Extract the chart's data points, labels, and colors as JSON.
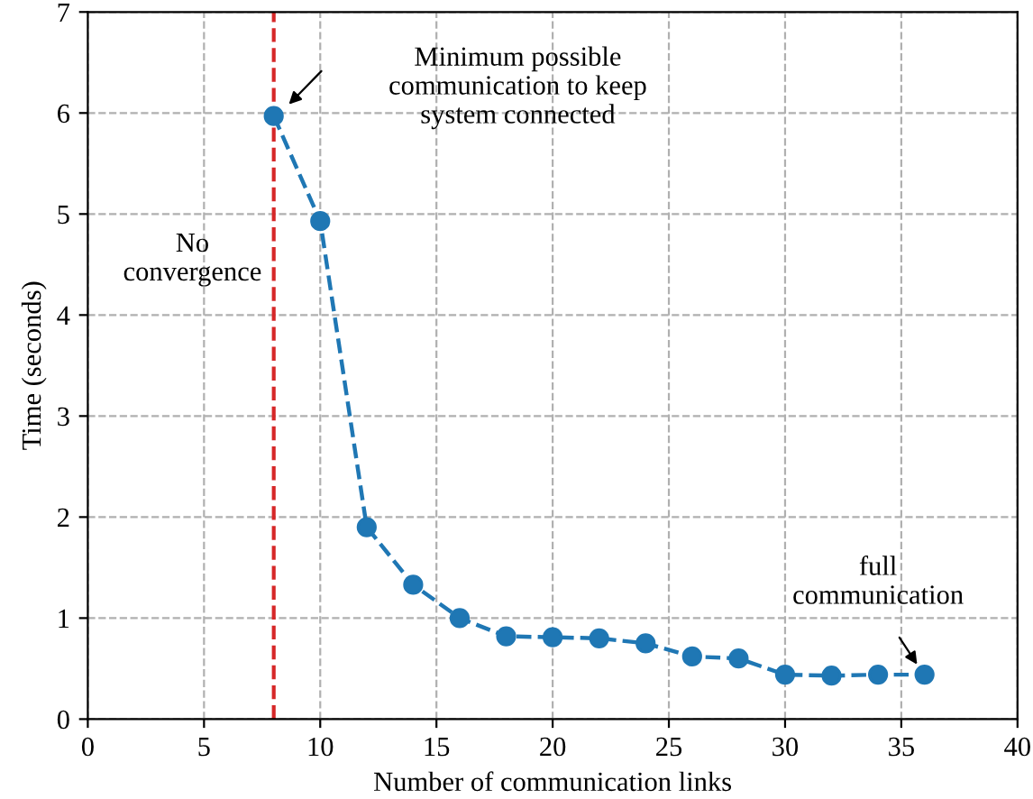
{
  "chart_data": {
    "type": "line",
    "xlabel": "Number of communication links",
    "ylabel": "Time (seconds)",
    "x": [
      8,
      10,
      12,
      14,
      16,
      18,
      20,
      22,
      24,
      26,
      28,
      30,
      32,
      34,
      36
    ],
    "series": [
      {
        "color": "#1f77b4",
        "values": [
          5.97,
          4.93,
          1.9,
          1.33,
          1.0,
          0.82,
          0.81,
          0.8,
          0.75,
          0.62,
          0.6,
          0.44,
          0.43,
          0.44,
          0.44
        ]
      }
    ],
    "marker": "circle",
    "line_style": "dashed",
    "xlim": [
      0,
      40
    ],
    "xticks": [
      0,
      5,
      10,
      15,
      20,
      25,
      30,
      35,
      40
    ],
    "ylim": [
      0,
      7
    ],
    "yticks": [
      0,
      1,
      2,
      3,
      4,
      5,
      6,
      7
    ],
    "grid": true,
    "ref_lines": [
      {
        "axis": "x",
        "value": 8,
        "color": "#d62728",
        "line_style": "dashed"
      }
    ],
    "annotations": [
      "Minimum possible\ncommunication to keep\nsystem connected",
      "full\ncommunication",
      "No\nconvergence"
    ]
  }
}
